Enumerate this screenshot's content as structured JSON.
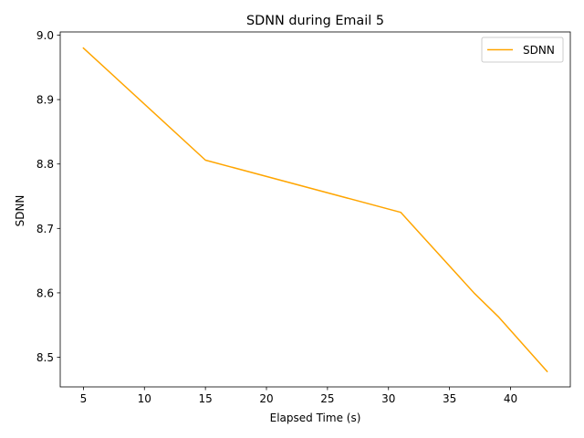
{
  "chart_data": {
    "type": "line",
    "title": "SDNN during Email 5",
    "xlabel": "Elapsed Time (s)",
    "ylabel": "SDNN",
    "xlim": [
      3.1,
      44.9
    ],
    "ylim": [
      8.454,
      9.005
    ],
    "xticks": [
      5,
      10,
      15,
      20,
      25,
      30,
      35,
      40
    ],
    "yticks": [
      8.5,
      8.6,
      8.7,
      8.8,
      8.9,
      9.0
    ],
    "ytick_labels": [
      "8.5",
      "8.6",
      "8.7",
      "8.8",
      "8.9",
      "9.0"
    ],
    "grid": false,
    "legend": {
      "placement": "upper right"
    },
    "series": [
      {
        "name": "SDNN",
        "color": "#ffa500",
        "x": [
          5,
          15,
          31,
          37,
          39,
          43
        ],
        "y": [
          8.98,
          8.806,
          8.725,
          8.6,
          8.563,
          8.478
        ]
      }
    ]
  }
}
